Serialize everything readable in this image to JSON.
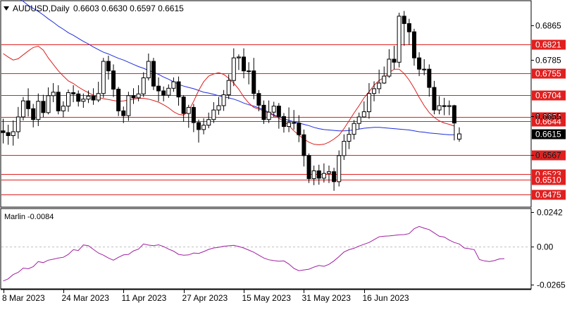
{
  "header": {
    "symbol": "AUDUSD,Daily",
    "ohlc": "0.6603 0.6630 0.6597 0.6615",
    "arrow": "triangle-down-icon"
  },
  "chart_data": [
    {
      "type": "candlestick",
      "title": "AUDUSD,Daily",
      "ylim": [
        0.6448,
        0.692
      ],
      "y_ticks": [
        "0.6865",
        "0.6785",
        "0.6655",
        "0.6615",
        "0.6567"
      ],
      "current_price": {
        "label": "0.6615",
        "value": 0.6615
      },
      "x_ticks": [
        {
          "label": "8 Mar 2023",
          "index": 0
        },
        {
          "label": "24 Mar 2023",
          "index": 12
        },
        {
          "label": "11 Apr 2023",
          "index": 24
        },
        {
          "label": "27 Apr 2023",
          "index": 36
        },
        {
          "label": "15 May 2023",
          "index": 48
        },
        {
          "label": "31 May 2023",
          "index": 60
        },
        {
          "label": "16 Jun 2023",
          "index": 72
        }
      ],
      "levels": [
        {
          "label": "0.6821",
          "value": 0.6821
        },
        {
          "label": "0.6755",
          "value": 0.6755
        },
        {
          "label": "0.6704",
          "value": 0.6704
        },
        {
          "label": "0.6654",
          "value": 0.6654
        },
        {
          "label": "0.6644",
          "value": 0.6644
        },
        {
          "label": "0.6567",
          "value": 0.6567
        },
        {
          "label": "0.6523",
          "value": 0.6523
        },
        {
          "label": "0.6510",
          "value": 0.651
        },
        {
          "label": "0.6475",
          "value": 0.6475
        }
      ],
      "level_color": "#e02020",
      "candles": [
        [
          0.6622,
          0.6618,
          0.665,
          0.6593
        ],
        [
          0.6618,
          0.6611,
          0.6636,
          0.659
        ],
        [
          0.6611,
          0.662,
          0.6646,
          0.6588
        ],
        [
          0.662,
          0.6654,
          0.6677,
          0.6604
        ],
        [
          0.6654,
          0.6691,
          0.67,
          0.6646
        ],
        [
          0.6691,
          0.6673,
          0.672,
          0.6655
        ],
        [
          0.6673,
          0.6648,
          0.6684,
          0.663
        ],
        [
          0.6648,
          0.669,
          0.6708,
          0.6633
        ],
        [
          0.669,
          0.6664,
          0.6705,
          0.6653
        ],
        [
          0.6664,
          0.6703,
          0.6722,
          0.666
        ],
        [
          0.6703,
          0.6711,
          0.6732,
          0.6688
        ],
        [
          0.6711,
          0.6668,
          0.6727,
          0.666
        ],
        [
          0.6668,
          0.6679,
          0.669,
          0.6653
        ],
        [
          0.6679,
          0.671,
          0.6717,
          0.6666
        ],
        [
          0.671,
          0.6707,
          0.6727,
          0.6688
        ],
        [
          0.6707,
          0.669,
          0.6715,
          0.6678
        ],
        [
          0.669,
          0.6695,
          0.6708,
          0.6675
        ],
        [
          0.6695,
          0.6702,
          0.6715,
          0.6686
        ],
        [
          0.6702,
          0.6693,
          0.672,
          0.6682
        ],
        [
          0.6693,
          0.6708,
          0.6735,
          0.6688
        ],
        [
          0.6708,
          0.6782,
          0.679,
          0.6698
        ],
        [
          0.6782,
          0.676,
          0.6795,
          0.674
        ],
        [
          0.676,
          0.6718,
          0.6775,
          0.67
        ],
        [
          0.6718,
          0.6668,
          0.6723,
          0.6656
        ],
        [
          0.6668,
          0.6657,
          0.6678,
          0.664
        ],
        [
          0.6657,
          0.6703,
          0.6712,
          0.6645
        ],
        [
          0.6703,
          0.6698,
          0.672,
          0.6684
        ],
        [
          0.6698,
          0.6707,
          0.6727,
          0.669
        ],
        [
          0.6707,
          0.6744,
          0.6757,
          0.67
        ],
        [
          0.6744,
          0.6782,
          0.68,
          0.6738
        ],
        [
          0.6782,
          0.6725,
          0.679,
          0.6716
        ],
        [
          0.6725,
          0.6714,
          0.6745,
          0.669
        ],
        [
          0.6714,
          0.6704,
          0.6724,
          0.669
        ],
        [
          0.6704,
          0.672,
          0.6729,
          0.6698
        ],
        [
          0.672,
          0.6735,
          0.6745,
          0.6712
        ],
        [
          0.6735,
          0.67,
          0.6747,
          0.668
        ],
        [
          0.67,
          0.6662,
          0.6704,
          0.6643
        ],
        [
          0.6662,
          0.6676,
          0.6682,
          0.6629
        ],
        [
          0.6676,
          0.6641,
          0.6684,
          0.6619
        ],
        [
          0.6641,
          0.6625,
          0.6648,
          0.6595
        ],
        [
          0.6625,
          0.6635,
          0.6651,
          0.6614
        ],
        [
          0.6635,
          0.6648,
          0.6664,
          0.6628
        ],
        [
          0.6648,
          0.667,
          0.6688,
          0.664
        ],
        [
          0.667,
          0.668,
          0.67,
          0.6659
        ],
        [
          0.668,
          0.6705,
          0.6716,
          0.6668
        ],
        [
          0.6705,
          0.6738,
          0.6752,
          0.6695
        ],
        [
          0.6738,
          0.679,
          0.6812,
          0.6725
        ],
        [
          0.679,
          0.6792,
          0.6798,
          0.6762
        ],
        [
          0.6792,
          0.676,
          0.6812,
          0.6743
        ],
        [
          0.676,
          0.676,
          0.678,
          0.6729
        ],
        [
          0.676,
          0.6708,
          0.679,
          0.6695
        ],
        [
          0.6708,
          0.6681,
          0.6716,
          0.6667
        ],
        [
          0.6681,
          0.6648,
          0.6692,
          0.6638
        ],
        [
          0.6648,
          0.6665,
          0.6692,
          0.664
        ],
        [
          0.6665,
          0.6679,
          0.6689,
          0.6654
        ],
        [
          0.6679,
          0.6655,
          0.6686,
          0.6627
        ],
        [
          0.6655,
          0.6632,
          0.6663,
          0.6618
        ],
        [
          0.6632,
          0.6641,
          0.6676,
          0.6619
        ],
        [
          0.6641,
          0.664,
          0.667,
          0.6625
        ],
        [
          0.664,
          0.6613,
          0.6658,
          0.6596
        ]
      ],
      "candles_cont": [
        [
          0.6613,
          0.6565,
          0.6625,
          0.654
        ],
        [
          0.6565,
          0.6512,
          0.657,
          0.6502
        ],
        [
          0.6512,
          0.653,
          0.6542,
          0.6497
        ],
        [
          0.653,
          0.6513,
          0.6544,
          0.6498
        ],
        [
          0.6513,
          0.6524,
          0.6547,
          0.6503
        ],
        [
          0.6524,
          0.6528,
          0.6542,
          0.6502
        ],
        [
          0.6528,
          0.6505,
          0.6537,
          0.6484
        ],
        [
          0.6505,
          0.6565,
          0.6577,
          0.6494
        ],
        [
          0.6565,
          0.6598,
          0.6614,
          0.6555
        ],
        [
          0.6598,
          0.6614,
          0.663,
          0.658
        ],
        [
          0.6614,
          0.6639,
          0.6647,
          0.6602
        ],
        [
          0.6639,
          0.6654,
          0.6664,
          0.6626
        ],
        [
          0.6654,
          0.6666,
          0.669,
          0.6652
        ],
        [
          0.6666,
          0.6708,
          0.6732,
          0.665
        ],
        [
          0.6708,
          0.6719,
          0.6736,
          0.669
        ],
        [
          0.6719,
          0.6732,
          0.6763,
          0.6708
        ],
        [
          0.6732,
          0.6748,
          0.677,
          0.673
        ],
        [
          0.6748,
          0.6787,
          0.681,
          0.6744
        ],
        [
          0.6787,
          0.678,
          0.6818,
          0.6764
        ],
        [
          0.678,
          0.6886,
          0.6894,
          0.6768
        ],
        [
          0.6886,
          0.6869,
          0.6898,
          0.6818
        ],
        [
          0.6869,
          0.685,
          0.688,
          0.682
        ],
        [
          0.685,
          0.679,
          0.6857,
          0.6772
        ],
        [
          0.679,
          0.6764,
          0.6803,
          0.6748
        ],
        [
          0.6764,
          0.6764,
          0.6787,
          0.675
        ],
        [
          0.6764,
          0.6722,
          0.6775,
          0.6701
        ],
        [
          0.6722,
          0.667,
          0.6737,
          0.666
        ],
        [
          0.667,
          0.668,
          0.6702,
          0.666
        ],
        [
          0.668,
          0.6678,
          0.6698,
          0.6658
        ],
        [
          0.6678,
          0.668,
          0.6692,
          0.6658
        ],
        [
          0.668,
          0.664,
          0.6682,
          0.66
        ],
        [
          0.6603,
          0.6615,
          0.663,
          0.6597
        ]
      ],
      "ma_blue": {
        "color": "#1e2ddc",
        "values": [
          0.695,
          0.6942,
          0.6935,
          0.6928,
          0.692,
          0.6911,
          0.6904,
          0.6897,
          0.6889,
          0.688,
          0.6872,
          0.6863,
          0.6856,
          0.6848,
          0.6842,
          0.6835,
          0.6828,
          0.6822,
          0.6815,
          0.6809,
          0.6803,
          0.6799,
          0.6794,
          0.6789,
          0.6785,
          0.678,
          0.6775,
          0.677,
          0.6766,
          0.6761,
          0.6757,
          0.6752,
          0.6746,
          0.6741,
          0.6735,
          0.6729,
          0.6725,
          0.6722,
          0.6719,
          0.6715,
          0.6711,
          0.6709,
          0.6706,
          0.6703,
          0.67,
          0.6698,
          0.6695,
          0.6691,
          0.6686,
          0.6682,
          0.6679,
          0.6675,
          0.667,
          0.6665,
          0.6659,
          0.6654,
          0.665,
          0.6646,
          0.6643,
          0.664,
          0.6637,
          0.6634,
          0.663,
          0.6627,
          0.6625,
          0.6624,
          0.6623,
          0.6622,
          0.6622,
          0.6623,
          0.6624,
          0.6626,
          0.6628,
          0.6629,
          0.663,
          0.663,
          0.6629,
          0.6628,
          0.6627,
          0.6626,
          0.6625,
          0.6624,
          0.6622,
          0.662,
          0.6619,
          0.6617,
          0.6616,
          0.6615,
          0.6614,
          0.6613,
          0.6613
        ]
      },
      "ma_red": {
        "color": "#dc1e1e",
        "values": [
          0.68,
          0.6792,
          0.6785,
          0.6788,
          0.6797,
          0.6806,
          0.6814,
          0.6817,
          0.6808,
          0.679,
          0.6775,
          0.676,
          0.6748,
          0.6737,
          0.6731,
          0.6723,
          0.6716,
          0.671,
          0.6704,
          0.6699,
          0.6696,
          0.6694,
          0.6692,
          0.669,
          0.6691,
          0.6693,
          0.6695,
          0.6697,
          0.6697,
          0.6695,
          0.6692,
          0.6688,
          0.6682,
          0.6675,
          0.6666,
          0.666,
          0.6658,
          0.6668,
          0.669,
          0.6715,
          0.6735,
          0.6748,
          0.6753,
          0.6756,
          0.6752,
          0.6743,
          0.6732,
          0.6718,
          0.67,
          0.6686,
          0.6676,
          0.6672,
          0.6668,
          0.6663,
          0.6657,
          0.6651,
          0.6644,
          0.6634,
          0.6622,
          0.6612,
          0.6603,
          0.6596,
          0.6591,
          0.659,
          0.6591,
          0.6596,
          0.6603,
          0.6612,
          0.6627,
          0.6645,
          0.6663,
          0.668,
          0.6698,
          0.6712,
          0.6727,
          0.6738,
          0.6745,
          0.6756,
          0.6764,
          0.6764,
          0.6754,
          0.6739,
          0.672,
          0.6699,
          0.668,
          0.6664,
          0.6653,
          0.6645,
          0.664,
          0.6637,
          0.6633
        ]
      }
    },
    {
      "type": "line",
      "title": "Marlin -0.0084",
      "ylim": [
        -0.029,
        0.026
      ],
      "y_ticks": [
        "0.0242",
        "0.00",
        "-0.0265"
      ],
      "series": [
        {
          "color": "#a020a0",
          "values": [
            -0.024,
            -0.0225,
            -0.0195,
            -0.018,
            -0.015,
            -0.0155,
            -0.014,
            -0.0105,
            -0.0112,
            -0.0095,
            -0.0088,
            -0.008,
            -0.0075,
            -0.0055,
            -0.0022,
            -0.0028,
            0.0011,
            0.0006,
            -0.002,
            -0.0045,
            -0.006,
            -0.008,
            -0.0095,
            -0.0075,
            -0.0058,
            -0.0055,
            -0.003,
            -0.0018,
            0.0018,
            0.001,
            0.0006,
            0.0012,
            0.0,
            -0.0018,
            -0.0032,
            -0.0055,
            -0.006,
            -0.0058,
            -0.0045,
            -0.0048,
            -0.0035,
            -0.002,
            -0.001,
            -0.0005,
            0.0002,
            0.0005,
            0.0008,
            0.0,
            -0.001,
            -0.0025,
            -0.004,
            -0.006,
            -0.008,
            -0.0092,
            -0.0098,
            -0.0102,
            -0.01,
            -0.0122,
            -0.0152,
            -0.0168,
            -0.0163,
            -0.0158,
            -0.0143,
            -0.0132,
            -0.0138,
            -0.0124,
            -0.01,
            -0.007,
            -0.0038,
            -0.0022,
            -0.0012,
            0.0003,
            0.0016,
            0.0028,
            0.0048,
            0.0068,
            0.0072,
            0.0074,
            0.0078,
            0.0082,
            0.0083,
            0.009,
            0.0125,
            0.014,
            0.0128,
            0.0118,
            0.0095,
            0.0072,
            0.0066,
            0.0045,
            0.0028,
            0.0018,
            -0.001,
            -0.0015,
            -0.0022,
            -0.009,
            -0.01,
            -0.0105,
            -0.0098,
            -0.0086,
            -0.0084
          ]
        }
      ]
    }
  ]
}
